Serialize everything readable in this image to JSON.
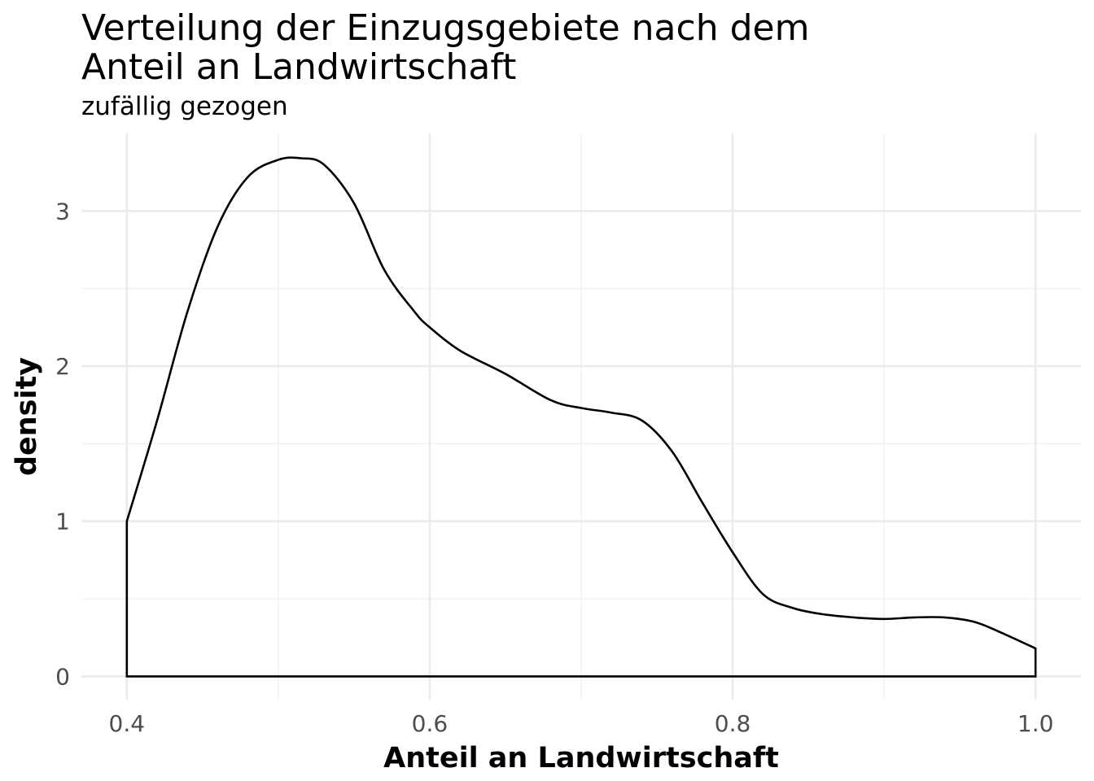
{
  "chart_data": {
    "type": "area",
    "title_lines": [
      "Verteilung der Einzugsgebiete nach dem",
      "Anteil an Landwirtschaft"
    ],
    "subtitle": "zufällig gezogen",
    "xlabel": "Anteil an Landwirtschaft",
    "ylabel": "density",
    "xlim": [
      0.37,
      1.03
    ],
    "ylim": [
      -0.15,
      3.5
    ],
    "x_ticks": [
      0.4,
      0.6,
      0.8,
      1.0
    ],
    "x_tick_labels": [
      "0.4",
      "0.6",
      "0.8",
      "1.0"
    ],
    "y_ticks": [
      0,
      1,
      2,
      3
    ],
    "y_tick_labels": [
      "0",
      "1",
      "2",
      "3"
    ],
    "grid": true,
    "legend": "none",
    "series": [
      {
        "x": [
          0.4,
          0.42,
          0.44,
          0.46,
          0.48,
          0.5,
          0.515,
          0.53,
          0.55,
          0.57,
          0.59,
          0.6,
          0.62,
          0.65,
          0.68,
          0.7,
          0.72,
          0.74,
          0.76,
          0.78,
          0.8,
          0.82,
          0.84,
          0.86,
          0.88,
          0.9,
          0.92,
          0.94,
          0.96,
          0.98,
          1.0
        ],
        "y": [
          1.0,
          1.65,
          2.35,
          2.9,
          3.22,
          3.33,
          3.34,
          3.3,
          3.05,
          2.62,
          2.35,
          2.25,
          2.1,
          1.95,
          1.78,
          1.73,
          1.7,
          1.65,
          1.45,
          1.12,
          0.8,
          0.53,
          0.44,
          0.4,
          0.38,
          0.37,
          0.38,
          0.38,
          0.35,
          0.27,
          0.18
        ]
      }
    ]
  }
}
